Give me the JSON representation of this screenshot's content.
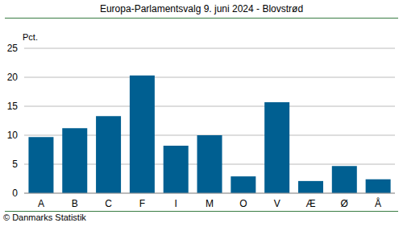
{
  "chart_data": {
    "type": "bar",
    "title": "Europa-Parlamentsvalg 9. juni 2024 - Blovstrød",
    "y_label": "Pct.",
    "annotations": [
      "© Danmarks Statistik"
    ],
    "categories": [
      "A",
      "B",
      "C",
      "F",
      "I",
      "M",
      "O",
      "V",
      "Æ",
      "Ø",
      "Å"
    ],
    "values": [
      9.7,
      11.2,
      13.3,
      20.3,
      8.2,
      10.0,
      2.9,
      15.7,
      2.1,
      4.7,
      2.4
    ],
    "color": "#005f91",
    "ylim": [
      0,
      25
    ],
    "yticks": [
      0,
      5,
      10,
      15,
      20,
      25
    ],
    "grid": true
  }
}
